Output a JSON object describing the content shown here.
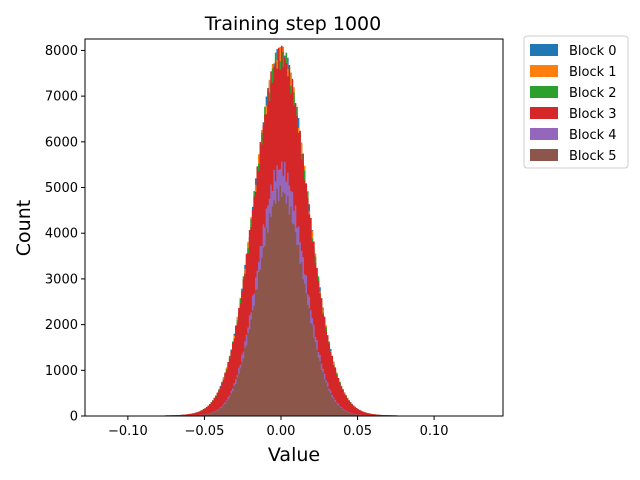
{
  "chart_data": {
    "type": "histogram",
    "title": "Training step 1000",
    "xlabel": "Value",
    "ylabel": "Count",
    "xlim": [
      -0.128,
      0.145
    ],
    "ylim": [
      0,
      8250
    ],
    "xticks": [
      -0.1,
      -0.05,
      0.0,
      0.05,
      0.1
    ],
    "xtick_labels": [
      "−0.10",
      "−0.05",
      "0.00",
      "0.05",
      "0.10"
    ],
    "yticks": [
      0,
      1000,
      2000,
      3000,
      4000,
      5000,
      6000,
      7000,
      8000
    ],
    "ytick_labels": [
      "0",
      "1000",
      "2000",
      "3000",
      "4000",
      "5000",
      "6000",
      "7000",
      "8000"
    ],
    "grid": false,
    "legend_position": "outside-right-top",
    "series": [
      {
        "name": "Block 0",
        "color": "#1f77b4",
        "peak": 7700,
        "sigma": 0.0175,
        "center": 0.0
      },
      {
        "name": "Block 1",
        "color": "#ff7f0e",
        "peak": 7700,
        "sigma": 0.0175,
        "center": 0.0
      },
      {
        "name": "Block 2",
        "color": "#2ca02c",
        "peak": 7700,
        "sigma": 0.0175,
        "center": 0.0
      },
      {
        "name": "Block 3",
        "color": "#d62728",
        "peak": 7700,
        "sigma": 0.0175,
        "center": 0.0
      },
      {
        "name": "Block 4",
        "color": "#9467bd",
        "peak": 5350,
        "sigma": 0.015,
        "center": 0.0
      },
      {
        "name": "Block 5",
        "color": "#8c564b",
        "peak": 4800,
        "sigma": 0.015,
        "center": 0.0
      }
    ],
    "bins": {
      "start": -0.12,
      "end": 0.13,
      "count": 250
    }
  }
}
